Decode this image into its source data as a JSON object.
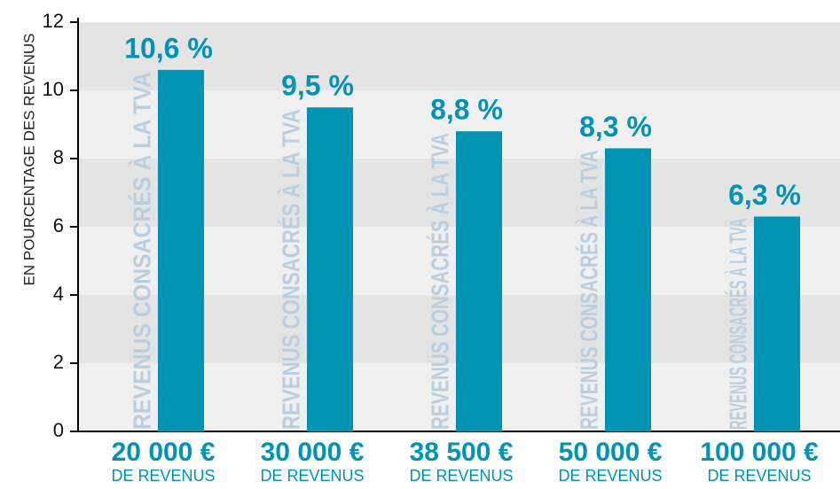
{
  "chart_data": {
    "type": "bar",
    "y_axis_label": "EN POURCENTAGE DES REVENUS",
    "categories": [
      "20 000 €",
      "30 000 €",
      "38 500 €",
      "50 000 €",
      "100 000 €"
    ],
    "category_sublabel": "DE REVENUS",
    "bar_annotation": "REVENUS CONSACRÉS À LA TVA",
    "values": [
      10.6,
      9.5,
      8.8,
      8.3,
      6.3
    ],
    "value_labels": [
      "10,6 %",
      "9,5 %",
      "8,8 %",
      "8,3 %",
      "6,3 %"
    ],
    "color": "#0093b3",
    "ylim": [
      0,
      12
    ],
    "yticks": [
      0,
      2,
      4,
      6,
      8,
      10,
      12
    ],
    "grid": true
  }
}
